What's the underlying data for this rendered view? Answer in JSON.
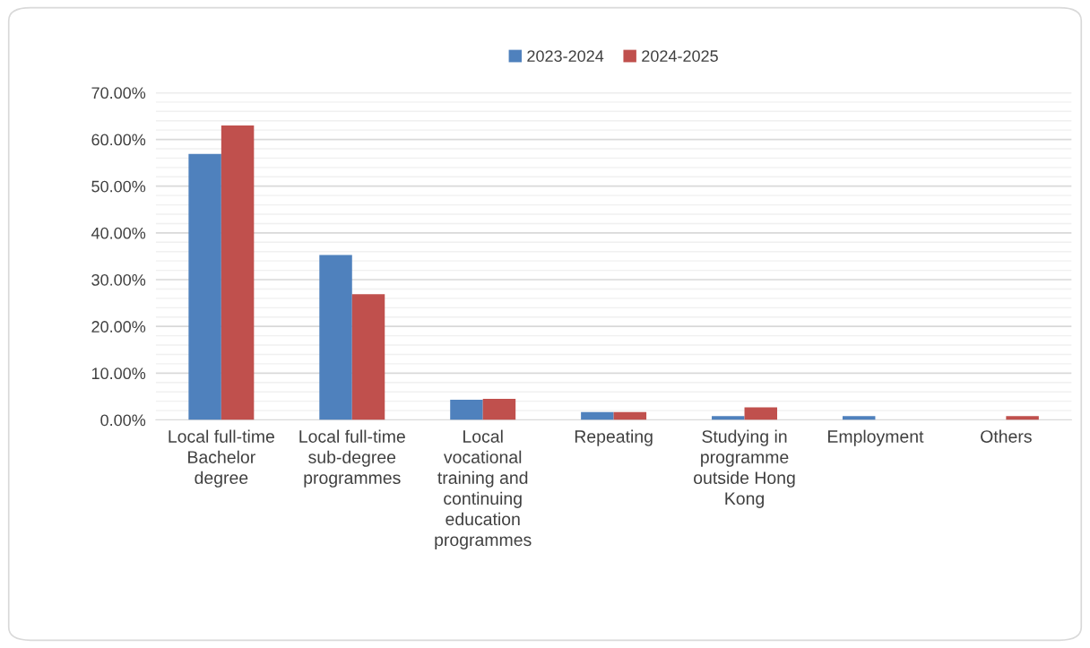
{
  "chart_data": {
    "type": "bar",
    "categories": [
      "Local full-time Bachelor degree",
      "Local full-time sub-degree programmes",
      "Local vocational training and continuing education programmes",
      "Repeating",
      "Studying in programme outside Hong Kong",
      "Employment",
      "Others"
    ],
    "series": [
      {
        "name": "2023-2024",
        "color": "#4f81bd",
        "values": [
          56.9,
          35.3,
          4.3,
          1.7,
          0.8,
          0.8,
          0
        ]
      },
      {
        "name": "2024-2025",
        "color": "#c0504d",
        "values": [
          63.0,
          26.9,
          4.5,
          1.7,
          2.7,
          0,
          0.8
        ]
      }
    ],
    "ylim": [
      0,
      70
    ],
    "yticks": [
      {
        "value": 0,
        "label": "0.00%"
      },
      {
        "value": 10,
        "label": "10.00%"
      },
      {
        "value": 20,
        "label": "20.00%"
      },
      {
        "value": 30,
        "label": "30.00%"
      },
      {
        "value": 40,
        "label": "40.00%"
      },
      {
        "value": 50,
        "label": "50.00%"
      },
      {
        "value": 60,
        "label": "60.00%"
      },
      {
        "value": 70,
        "label": "70.00%"
      }
    ],
    "grid": true,
    "legend": "top"
  }
}
